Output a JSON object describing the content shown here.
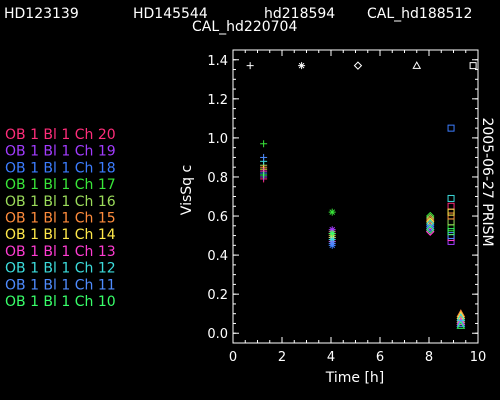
{
  "header": {
    "stars": [
      "HD123139",
      "HD145544",
      "hd218594",
      "CAL_hd188512"
    ],
    "second_line": "CAL_hd220704"
  },
  "side_label": "2005-06-27 PRISM",
  "star_markers": [
    {
      "x": 0.7,
      "symbol": "+"
    },
    {
      "x": 2.8,
      "symbol": "*"
    },
    {
      "x": 5.1,
      "symbol": "diamond"
    },
    {
      "x": 7.5,
      "symbol": "triangle"
    },
    {
      "x": 9.8,
      "symbol": "square"
    }
  ],
  "chart_data": {
    "type": "scatter",
    "title": "",
    "xlabel": "Time [h]",
    "ylabel": "VisSq c",
    "xlim": [
      0,
      10
    ],
    "ylim": [
      -0.05,
      1.45
    ],
    "xticks": [
      0,
      2,
      4,
      6,
      8,
      10
    ],
    "yticks": [
      0.0,
      0.2,
      0.4,
      0.6,
      0.8,
      1.0,
      1.2,
      1.4
    ],
    "ytick_labels": [
      "0.0",
      "0.2",
      "0.4",
      "0.6",
      "0.8",
      "1.0",
      "1.2",
      "1.4"
    ],
    "grid": false,
    "legend_placement": "left",
    "x_groups": [
      {
        "x": 1.25,
        "marker": "+"
      },
      {
        "x": 4.05,
        "marker": "*"
      },
      {
        "x": 8.05,
        "marker": "diamond"
      },
      {
        "x": 8.9,
        "marker": "square"
      },
      {
        "x": 9.3,
        "marker": "triangle"
      }
    ],
    "series": [
      {
        "name": "OB 1 Bl 1 Ch 20",
        "color": "#ff2d7a",
        "values": [
          0.79,
          0.52,
          0.52,
          0.65,
          0.08
        ]
      },
      {
        "name": "OB 1 Bl 1 Ch 19",
        "color": "#a23cff",
        "values": [
          0.8,
          0.53,
          0.53,
          0.47,
          0.07
        ]
      },
      {
        "name": "OB 1 Bl 1 Ch 18",
        "color": "#3c7dff",
        "values": [
          0.82,
          0.45,
          0.55,
          1.05,
          0.05
        ]
      },
      {
        "name": "OB 1 Bl 1 Ch 17",
        "color": "#39e639",
        "values": [
          0.97,
          0.62,
          0.6,
          0.54,
          0.06
        ]
      },
      {
        "name": "OB 1 Bl 1 Ch 16",
        "color": "#9bdc5a",
        "values": [
          0.86,
          0.51,
          0.59,
          0.57,
          0.07
        ]
      },
      {
        "name": "OB 1 Bl 1 Ch 15",
        "color": "#ff8c3c",
        "values": [
          0.85,
          0.5,
          0.58,
          0.6,
          0.1
        ]
      },
      {
        "name": "OB 1 Bl 1 Ch 14",
        "color": "#ffe94a",
        "values": [
          0.84,
          0.49,
          0.57,
          0.62,
          0.09
        ]
      },
      {
        "name": "OB 1 Bl 1 Ch 13",
        "color": "#ff3cd2",
        "values": [
          0.83,
          0.47,
          0.52,
          0.49,
          0.06
        ]
      },
      {
        "name": "OB 1 Bl 1 Ch 12",
        "color": "#3cdcdc",
        "values": [
          0.88,
          0.48,
          0.56,
          0.69,
          0.08
        ]
      },
      {
        "name": "OB 1 Bl 1 Ch 11",
        "color": "#4f8cff",
        "values": [
          0.9,
          0.46,
          0.54,
          0.5,
          0.05
        ]
      },
      {
        "name": "OB 1 Bl 1 Ch 10",
        "color": "#38ff6a",
        "values": [
          0.81,
          0.51,
          0.53,
          0.52,
          0.04
        ]
      }
    ]
  }
}
